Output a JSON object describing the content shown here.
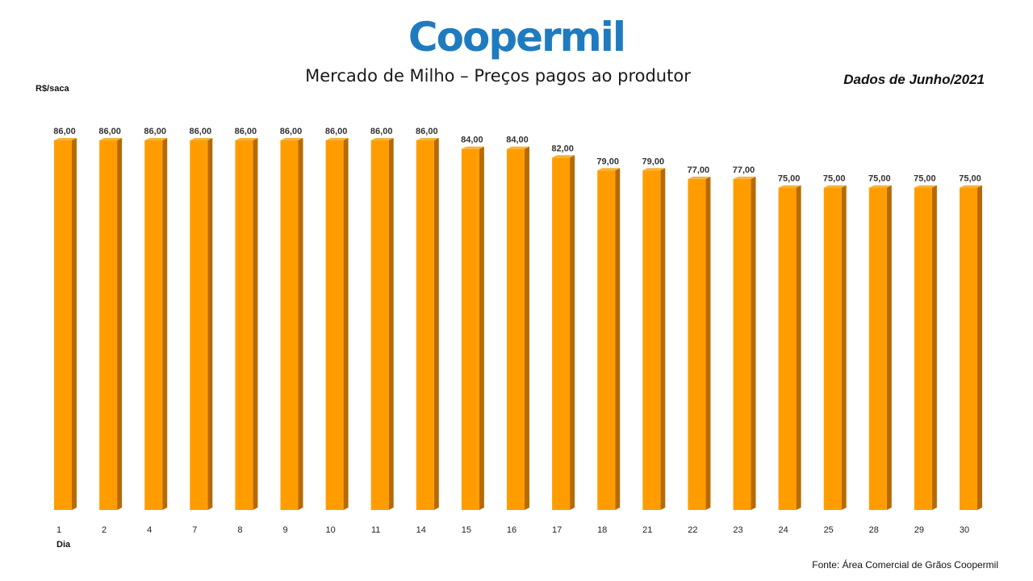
{
  "logo": {
    "text": "Coopermil"
  },
  "header": {
    "title": "Mercado de Milho – Preços pagos ao produtor",
    "period": "Dados de Junho/2021"
  },
  "footer": {
    "source": "Fonte:  Área Comercial de Grãos Coopermil"
  },
  "colors": {
    "bar_front": "#ff9d00",
    "bar_side": "#b86a00",
    "bar_top": "#f5b23e",
    "logo": "#1f7bbf"
  },
  "chart_data": {
    "type": "bar",
    "title": "Mercado de Milho – Preços pagos ao produtor",
    "xlabel": "Dia",
    "ylabel": "R$/saca",
    "categories": [
      "1",
      "2",
      "4",
      "7",
      "8",
      "9",
      "10",
      "11",
      "14",
      "15",
      "16",
      "17",
      "18",
      "21",
      "22",
      "23",
      "24",
      "25",
      "28",
      "29",
      "30"
    ],
    "values": [
      86,
      86,
      86,
      86,
      86,
      86,
      86,
      86,
      86,
      84,
      84,
      82,
      79,
      79,
      77,
      77,
      75,
      75,
      75,
      75,
      75
    ],
    "value_labels": [
      "86,00",
      "86,00",
      "86,00",
      "86,00",
      "86,00",
      "86,00",
      "86,00",
      "86,00",
      "86,00",
      "84,00",
      "84,00",
      "82,00",
      "79,00",
      "79,00",
      "77,00",
      "77,00",
      "75,00",
      "75,00",
      "75,00",
      "75,00",
      "75,00"
    ],
    "ylim": [
      0,
      86
    ],
    "grid": false,
    "legend": "none",
    "style": "3d-column"
  }
}
